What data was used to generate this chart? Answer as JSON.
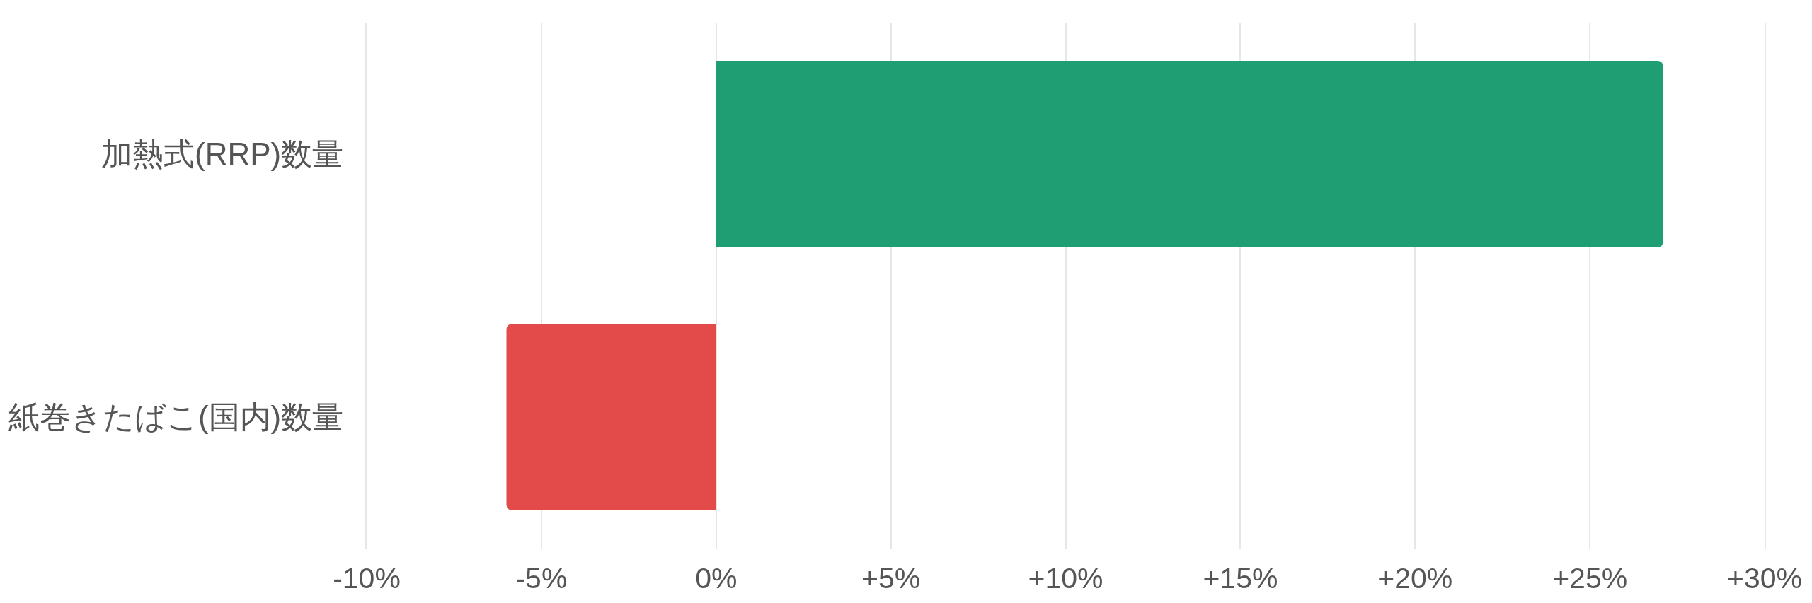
{
  "chart_data": {
    "type": "bar",
    "orientation": "horizontal",
    "categories": [
      "加熱式(RRP)数量",
      "紙巻きたばこ(国内)数量"
    ],
    "values": [
      27.1,
      -6.0
    ],
    "colors": [
      "#1f9e74",
      "#e34b4b"
    ],
    "xlim": [
      -10,
      30
    ],
    "xticks": [
      {
        "value": -10,
        "label": "-10%"
      },
      {
        "value": -5,
        "label": "-5%"
      },
      {
        "value": 0,
        "label": "0%"
      },
      {
        "value": 5,
        "label": "+5%"
      },
      {
        "value": 10,
        "label": "+10%"
      },
      {
        "value": 15,
        "label": "+15%"
      },
      {
        "value": 20,
        "label": "+20%"
      },
      {
        "value": 25,
        "label": "+25%"
      },
      {
        "value": 30,
        "label": "+30%"
      }
    ],
    "grid": "x"
  }
}
